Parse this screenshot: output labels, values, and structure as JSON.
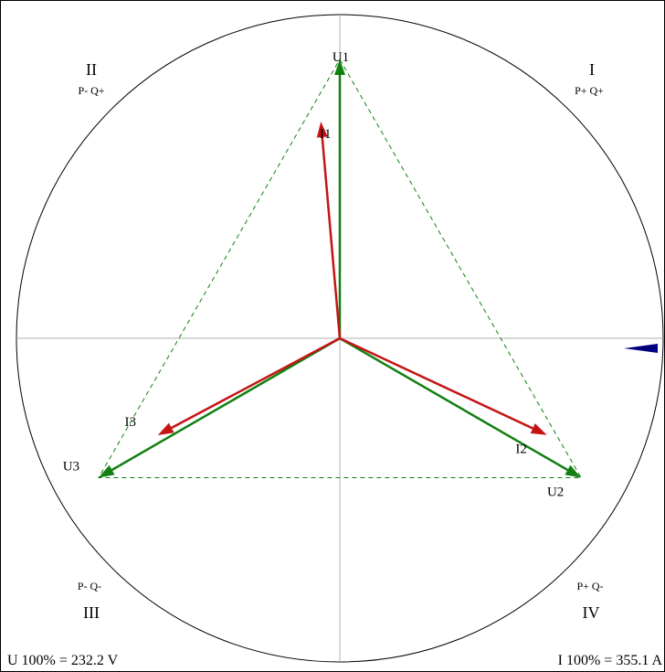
{
  "quadrants": {
    "I": {
      "numeral": "I",
      "pq": "P+ Q+"
    },
    "II": {
      "numeral": "II",
      "pq": "P- Q+"
    },
    "III": {
      "numeral": "III",
      "pq": "P- Q-"
    },
    "IV": {
      "numeral": "IV",
      "pq": "P+ Q-"
    }
  },
  "vectors": {
    "voltage": [
      {
        "label": "U1",
        "angle_deg": 90,
        "magnitude_pct": 100
      },
      {
        "label": "U2",
        "angle_deg": -30,
        "magnitude_pct": 100
      },
      {
        "label": "U3",
        "angle_deg": 210,
        "magnitude_pct": 100
      }
    ],
    "current": [
      {
        "label": "I1",
        "angle_deg": 95,
        "magnitude_pct": 78
      },
      {
        "label": "I2",
        "angle_deg": -25,
        "magnitude_pct": 82
      },
      {
        "label": "I3",
        "angle_deg": 208,
        "magnitude_pct": 74
      }
    ]
  },
  "footer": {
    "u_scale": "U 100% = 232.2 V",
    "i_scale": "I 100% = 355.1 A"
  },
  "colors": {
    "voltage": "#118011",
    "current": "#c41414",
    "reference_marker": "#00007f",
    "axis": "#b0b0b0",
    "circle": "#000000"
  }
}
